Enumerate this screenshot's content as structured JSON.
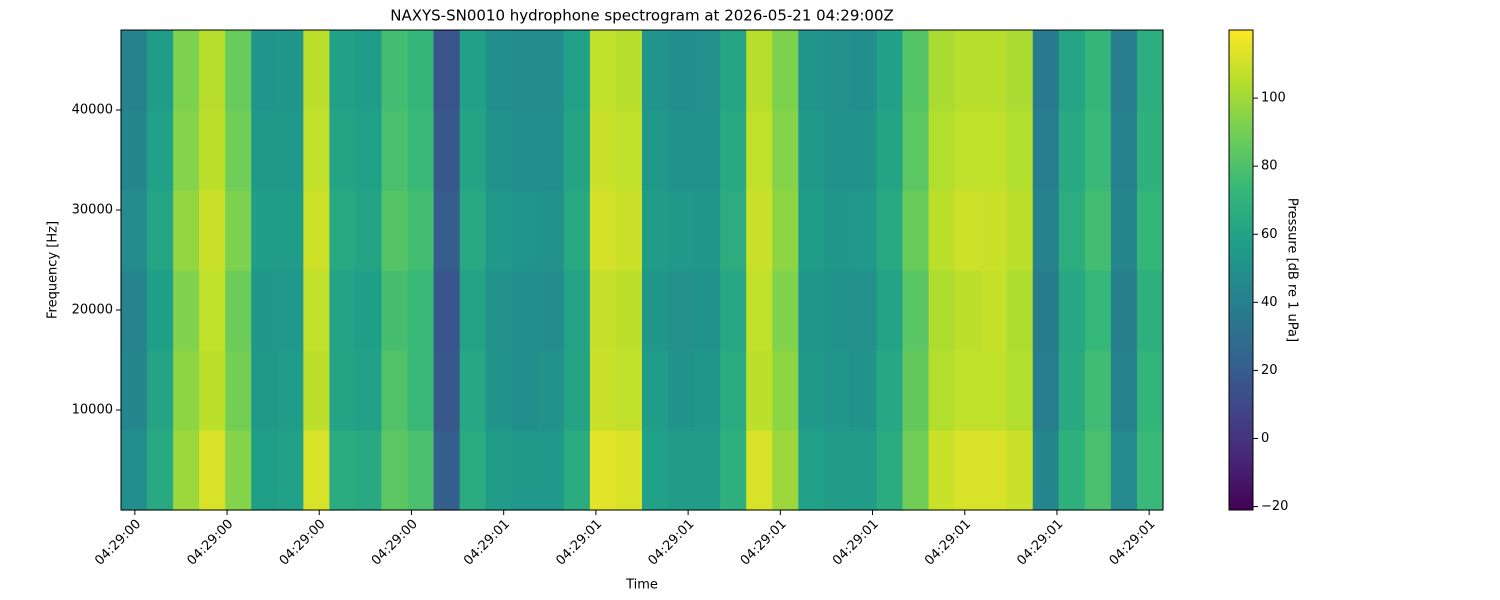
{
  "chart_data": {
    "type": "heatmap",
    "title": "NAXYS-SN0010 hydrophone spectrogram at 2026-05-21 04:29:00Z",
    "x_label": "Time",
    "y_label": "Frequency [Hz]",
    "colorbar_label": "Pressure [dB re 1 uPa]",
    "cmap": "viridis",
    "xlim": [
      0.585,
      1.715
    ],
    "xticks": [
      {
        "value": 0.6,
        "label": "04:29:00"
      },
      {
        "value": 0.7,
        "label": "04:29:00"
      },
      {
        "value": 0.8,
        "label": "04:29:00"
      },
      {
        "value": 0.9,
        "label": "04:29:00"
      },
      {
        "value": 1.0,
        "label": "04:29:01"
      },
      {
        "value": 1.1,
        "label": "04:29:01"
      },
      {
        "value": 1.2,
        "label": "04:29:01"
      },
      {
        "value": 1.3,
        "label": "04:29:01"
      },
      {
        "value": 1.4,
        "label": "04:29:01"
      },
      {
        "value": 1.5,
        "label": "04:29:01"
      },
      {
        "value": 1.6,
        "label": "04:29:01"
      },
      {
        "value": 1.7,
        "label": "04:29:01"
      }
    ],
    "ylim": [
      0,
      48000
    ],
    "yticks": [
      10000,
      20000,
      30000,
      40000
    ],
    "clim": [
      -21,
      120
    ],
    "cticks": [
      {
        "value": -20,
        "label": "−20"
      },
      0,
      20,
      40,
      60,
      80,
      100
    ],
    "z": [
      [
        49,
        64,
        99,
        112,
        94,
        58,
        59,
        112,
        66,
        64,
        84,
        79,
        22,
        66,
        56,
        54,
        54,
        66,
        114,
        112,
        59,
        56,
        56,
        69,
        112,
        99,
        59,
        56,
        56,
        66,
        89,
        109,
        112,
        112,
        109,
        44,
        69,
        79,
        46,
        74
      ],
      [
        44,
        61,
        96,
        106,
        90,
        54,
        56,
        106,
        61,
        59,
        81,
        74,
        17,
        63,
        51,
        49,
        51,
        61,
        109,
        107,
        56,
        51,
        53,
        66,
        106,
        96,
        54,
        53,
        51,
        63,
        86,
        104,
        107,
        107,
        104,
        39,
        64,
        76,
        41,
        71
      ],
      [
        43,
        58,
        93,
        107,
        88,
        53,
        54,
        107,
        60,
        58,
        78,
        74,
        16,
        60,
        50,
        49,
        48,
        60,
        108,
        106,
        53,
        50,
        51,
        63,
        107,
        93,
        53,
        51,
        50,
        60,
        83,
        103,
        106,
        108,
        103,
        38,
        63,
        73,
        40,
        68
      ],
      [
        47,
        62,
        97,
        109,
        92,
        57,
        56,
        110,
        64,
        61,
        82,
        77,
        20,
        64,
        54,
        52,
        51,
        64,
        111,
        109,
        56,
        54,
        53,
        67,
        109,
        96,
        57,
        53,
        54,
        64,
        87,
        106,
        110,
        109,
        106,
        42,
        67,
        77,
        44,
        72
      ],
      [
        44,
        59,
        94,
        106,
        89,
        54,
        54,
        107,
        61,
        59,
        79,
        74,
        17,
        61,
        51,
        49,
        49,
        61,
        109,
        107,
        54,
        51,
        51,
        64,
        107,
        94,
        54,
        51,
        51,
        61,
        84,
        104,
        107,
        107,
        104,
        39,
        64,
        74,
        41,
        69
      ],
      [
        42,
        57,
        92,
        105,
        87,
        52,
        53,
        106,
        59,
        57,
        77,
        72,
        15,
        59,
        49,
        47,
        48,
        59,
        107,
        105,
        52,
        49,
        50,
        62,
        105,
        92,
        52,
        50,
        49,
        59,
        82,
        102,
        105,
        105,
        102,
        37,
        62,
        72,
        39,
        67
      ]
    ]
  }
}
